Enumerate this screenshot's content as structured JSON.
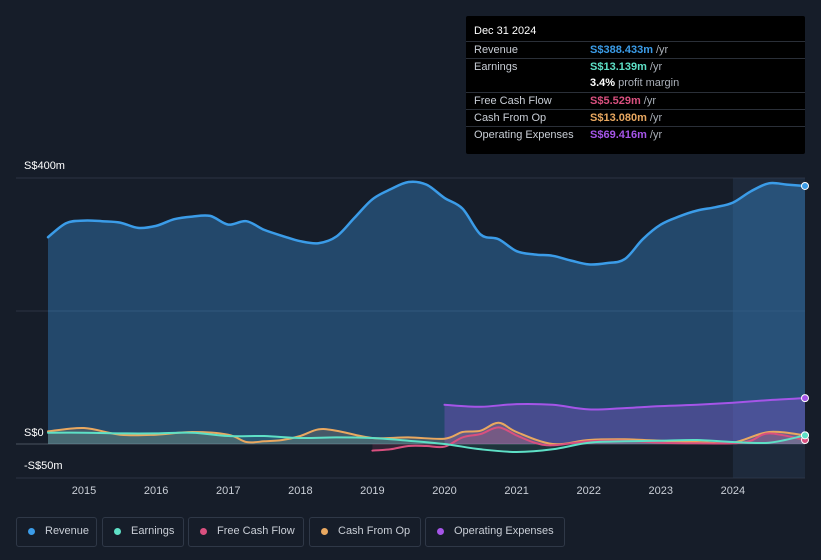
{
  "tooltip": {
    "date": "Dec 31 2024",
    "rows": [
      {
        "label": "Revenue",
        "value": "S$388.433m",
        "unit": "/yr",
        "color": "#3b9ce8"
      },
      {
        "label": "Earnings",
        "value": "S$13.139m",
        "unit": "/yr",
        "color": "#5ee0c6"
      },
      {
        "label": "",
        "value": "3.4%",
        "unit": "profit margin",
        "color": "#ffffff"
      },
      {
        "label": "Free Cash Flow",
        "value": "S$5.529m",
        "unit": "/yr",
        "color": "#d9507f"
      },
      {
        "label": "Cash From Op",
        "value": "S$13.080m",
        "unit": "/yr",
        "color": "#e9a860"
      },
      {
        "label": "Operating Expenses",
        "value": "S$69.416m",
        "unit": "/yr",
        "color": "#a555e8"
      }
    ]
  },
  "legend": [
    {
      "label": "Revenue",
      "color": "#3b9ce8"
    },
    {
      "label": "Earnings",
      "color": "#5ee0c6"
    },
    {
      "label": "Free Cash Flow",
      "color": "#d9507f"
    },
    {
      "label": "Cash From Op",
      "color": "#e9a860"
    },
    {
      "label": "Operating Expenses",
      "color": "#a555e8"
    }
  ],
  "chart_data": {
    "type": "area",
    "title": "",
    "xlabel": "",
    "ylabel": "",
    "ylim": [
      -50,
      400
    ],
    "xlim": [
      2014.5,
      2025.0
    ],
    "y_tick_labels": [
      "S$400m",
      "S$0",
      "-S$50m"
    ],
    "x_tick_labels": [
      "2015",
      "2016",
      "2017",
      "2018",
      "2019",
      "2020",
      "2021",
      "2022",
      "2023",
      "2024"
    ],
    "forecast_shade_from": 2024.0,
    "series": [
      {
        "name": "Revenue",
        "color": "#3b9ce8",
        "x": [
          2014.5,
          2014.75,
          2015.0,
          2015.25,
          2015.5,
          2015.75,
          2016.0,
          2016.25,
          2016.5,
          2016.75,
          2017.0,
          2017.25,
          2017.5,
          2017.75,
          2018.0,
          2018.25,
          2018.5,
          2018.75,
          2019.0,
          2019.25,
          2019.5,
          2019.75,
          2020.0,
          2020.25,
          2020.5,
          2020.75,
          2021.0,
          2021.25,
          2021.5,
          2021.75,
          2022.0,
          2022.25,
          2022.5,
          2022.75,
          2023.0,
          2023.25,
          2023.5,
          2023.75,
          2024.0,
          2024.25,
          2024.5,
          2024.75,
          2025.0
        ],
        "values": [
          311,
          332,
          336,
          335,
          333,
          325,
          328,
          338,
          342,
          343,
          330,
          335,
          322,
          313,
          305,
          302,
          312,
          340,
          368,
          383,
          394,
          390,
          370,
          354,
          315,
          308,
          290,
          285,
          283,
          276,
          270,
          272,
          278,
          308,
          330,
          342,
          351,
          356,
          363,
          380,
          392,
          390,
          388
        ]
      },
      {
        "name": "Earnings",
        "color": "#5ee0c6",
        "x": [
          2014.5,
          2015.0,
          2015.5,
          2016.0,
          2016.5,
          2017.0,
          2017.5,
          2018.0,
          2018.5,
          2019.0,
          2019.5,
          2020.0,
          2020.5,
          2021.0,
          2021.5,
          2022.0,
          2022.5,
          2023.0,
          2023.5,
          2024.0,
          2024.5,
          2025.0
        ],
        "values": [
          17,
          17,
          16,
          16,
          17,
          12,
          12,
          9,
          10,
          9,
          5,
          0,
          -8,
          -12,
          -8,
          2,
          4,
          5,
          6,
          3,
          2,
          13
        ]
      },
      {
        "name": "Free Cash Flow",
        "color": "#d9507f",
        "x": [
          2019.0,
          2019.25,
          2019.5,
          2019.75,
          2020.0,
          2020.25,
          2020.5,
          2020.75,
          2021.0,
          2021.25,
          2021.5,
          2022.0,
          2022.5,
          2023.0,
          2023.5,
          2024.0,
          2024.25,
          2024.5,
          2025.0
        ],
        "values": [
          -10,
          -8,
          -3,
          -3,
          -4,
          10,
          15,
          25,
          13,
          2,
          -2,
          4,
          5,
          2,
          1,
          1,
          5,
          16,
          6
        ]
      },
      {
        "name": "Cash From Op",
        "color": "#e9a860",
        "x": [
          2014.5,
          2015.0,
          2015.5,
          2016.0,
          2016.5,
          2017.0,
          2017.25,
          2017.5,
          2017.75,
          2018.0,
          2018.25,
          2018.5,
          2019.0,
          2019.5,
          2020.0,
          2020.25,
          2020.5,
          2020.75,
          2021.0,
          2021.5,
          2022.0,
          2022.5,
          2023.0,
          2023.5,
          2024.0,
          2024.5,
          2025.0
        ],
        "values": [
          19,
          24,
          14,
          14,
          18,
          14,
          3,
          4,
          6,
          12,
          22,
          20,
          9,
          10,
          8,
          18,
          20,
          32,
          18,
          0,
          6,
          7,
          5,
          3,
          2,
          18,
          13
        ]
      },
      {
        "name": "Operating Expenses",
        "color": "#a555e8",
        "x": [
          2020.0,
          2020.5,
          2021.0,
          2021.5,
          2022.0,
          2022.5,
          2023.0,
          2023.5,
          2024.0,
          2024.5,
          2025.0
        ],
        "values": [
          59,
          56,
          60,
          59,
          52,
          54,
          57,
          59,
          62,
          66,
          69
        ]
      }
    ]
  }
}
